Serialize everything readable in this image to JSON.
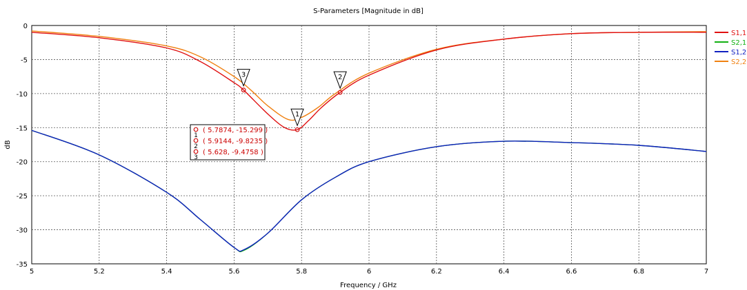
{
  "chart_data": {
    "type": "line",
    "title": "S-Parameters [Magnitude in dB]",
    "xlabel": "Frequency / GHz",
    "ylabel": "dB",
    "xlim": [
      5,
      7
    ],
    "ylim": [
      -35,
      0
    ],
    "xticks": [
      "5",
      "5.2",
      "5.4",
      "5.6",
      "5.8",
      "6",
      "6.2",
      "6.4",
      "6.6",
      "6.8",
      "7"
    ],
    "yticks": [
      "0",
      "-5",
      "-10",
      "-15",
      "-20",
      "-25",
      "-30",
      "-35"
    ],
    "grid": true,
    "legend_position": "right",
    "series": [
      {
        "name": "S1,1",
        "color": "#e01010",
        "x": [
          5.0,
          5.2,
          5.4,
          5.5,
          5.6,
          5.628,
          5.7,
          5.75,
          5.7874,
          5.82,
          5.86,
          5.9144,
          6.0,
          6.2,
          6.4,
          6.6,
          6.8,
          7.0
        ],
        "y": [
          -1.0,
          -1.8,
          -3.3,
          -5.3,
          -8.4,
          -9.4758,
          -13.0,
          -15.0,
          -15.299,
          -14.0,
          -12.0,
          -9.8235,
          -7.3,
          -3.6,
          -2.0,
          -1.2,
          -1.0,
          -1.0
        ]
      },
      {
        "name": "S2,1",
        "color": "#10b010",
        "x": [
          5.0,
          5.2,
          5.4,
          5.5,
          5.6,
          5.63,
          5.7,
          5.8,
          5.9,
          6.0,
          6.2,
          6.4,
          6.6,
          6.8,
          7.0
        ],
        "y": [
          -15.4,
          -19.0,
          -24.5,
          -28.5,
          -32.6,
          -33.0,
          -30.5,
          -25.6,
          -22.3,
          -20.0,
          -17.8,
          -17.0,
          -17.2,
          -17.6,
          -18.5
        ]
      },
      {
        "name": "S1,2",
        "color": "#1020c0",
        "x": [
          5.0,
          5.2,
          5.4,
          5.5,
          5.6,
          5.63,
          5.7,
          5.8,
          5.9,
          6.0,
          6.2,
          6.4,
          6.6,
          6.8,
          7.0
        ],
        "y": [
          -15.4,
          -19.0,
          -24.5,
          -28.5,
          -32.6,
          -32.9,
          -30.5,
          -25.6,
          -22.3,
          -20.0,
          -17.8,
          -17.0,
          -17.2,
          -17.6,
          -18.5
        ]
      },
      {
        "name": "S2,2",
        "color": "#f08010",
        "x": [
          5.0,
          5.2,
          5.4,
          5.5,
          5.6,
          5.65,
          5.7,
          5.76,
          5.8,
          5.85,
          5.9,
          6.0,
          6.2,
          6.4,
          6.6,
          6.8,
          7.0
        ],
        "y": [
          -0.8,
          -1.6,
          -3.0,
          -4.6,
          -7.5,
          -9.5,
          -11.8,
          -13.8,
          -13.5,
          -12.0,
          -10.0,
          -7.0,
          -3.5,
          -2.0,
          -1.2,
          -1.0,
          -0.9
        ]
      }
    ],
    "markers": [
      {
        "id": "1",
        "x": 5.7874,
        "y": -15.299,
        "label": "( 5.7874, -15.299 )"
      },
      {
        "id": "2",
        "x": 5.9144,
        "y": -9.8235,
        "label": "( 5.9144, -9.8235 )"
      },
      {
        "id": "3",
        "x": 5.628,
        "y": -9.4758,
        "label": "( 5.628, -9.4758 )"
      }
    ]
  }
}
